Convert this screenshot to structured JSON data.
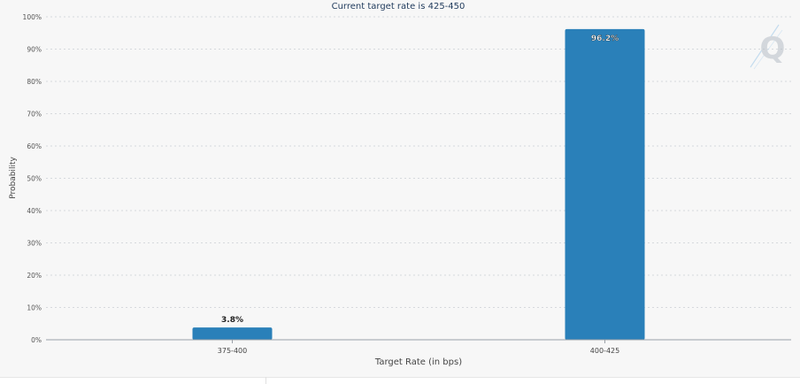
{
  "chart_data": {
    "type": "bar",
    "title": "Current target rate is 425-450",
    "xlabel": "Target Rate (in bps)",
    "ylabel": "Probability",
    "categories": [
      "375-400",
      "400-425"
    ],
    "values": [
      3.8,
      96.2
    ],
    "data_labels": [
      "3.8%",
      "96.2%"
    ],
    "ylim": [
      0,
      100
    ],
    "yticks": [
      "0%",
      "10%",
      "20%",
      "30%",
      "40%",
      "50%",
      "60%",
      "70%",
      "80%",
      "90%",
      "100%"
    ],
    "grid": true,
    "bar_color": "#2a80b9"
  },
  "watermark": {
    "icon": "q-logo-icon"
  }
}
